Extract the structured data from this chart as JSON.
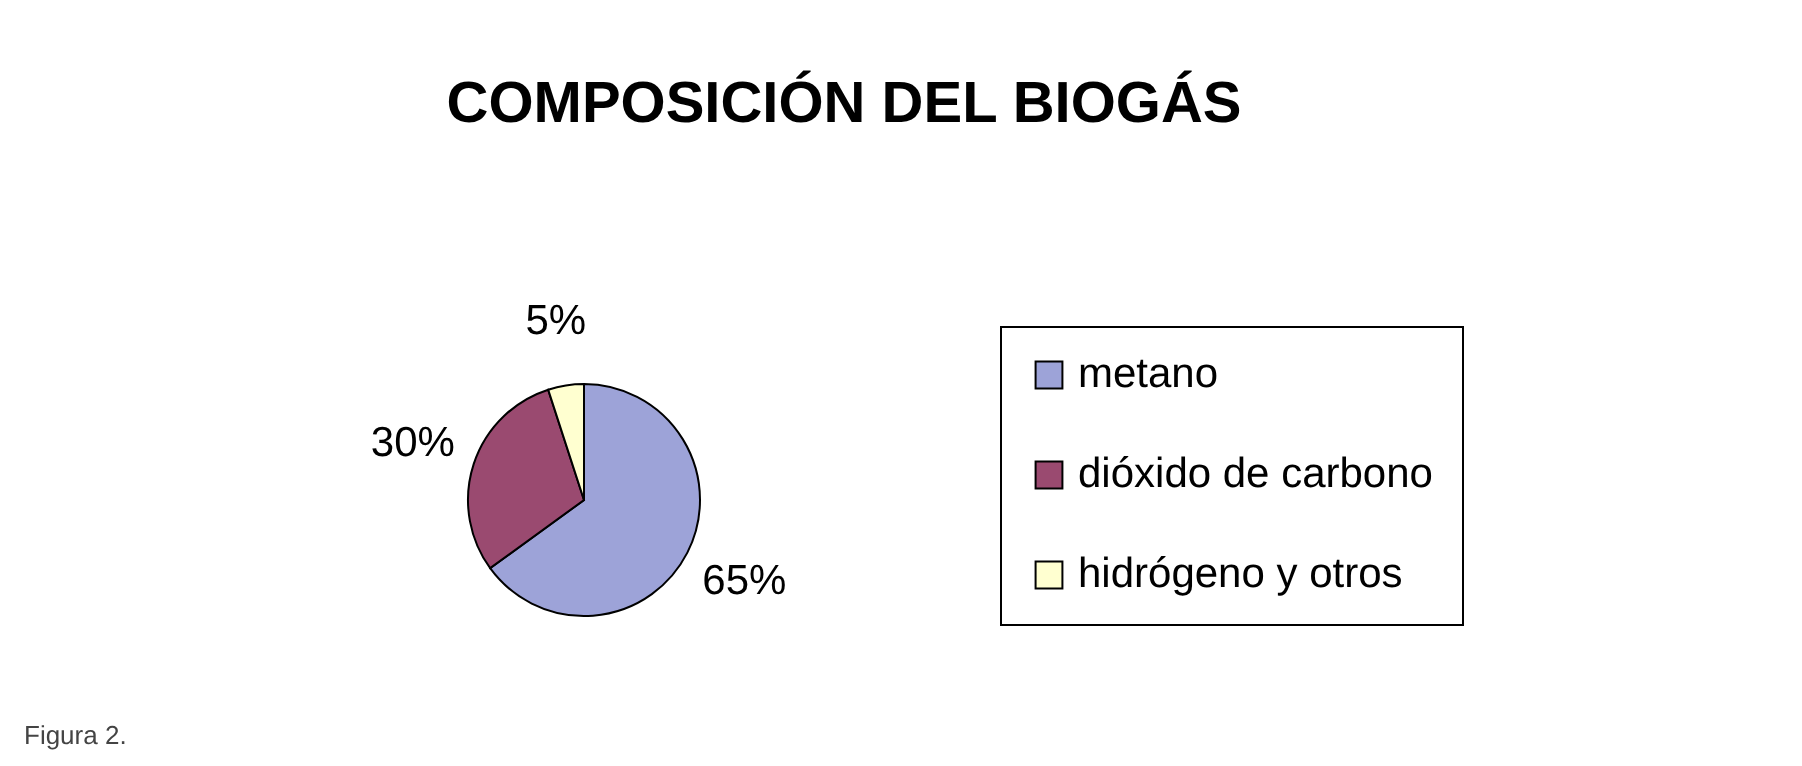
{
  "chart_data": {
    "type": "pie",
    "title": "COMPOSICIÓN DEL BIOGÁS",
    "categories": [
      "metano",
      "dióxido de carbono",
      "hidrógeno y otros"
    ],
    "values": [
      65,
      30,
      5
    ],
    "value_labels": [
      "65%",
      "30%",
      "5%"
    ],
    "colors": [
      "#9da3d8",
      "#9a4a70",
      "#ffffd0"
    ],
    "legend": "right",
    "annotations": [
      "Figura 2."
    ]
  }
}
